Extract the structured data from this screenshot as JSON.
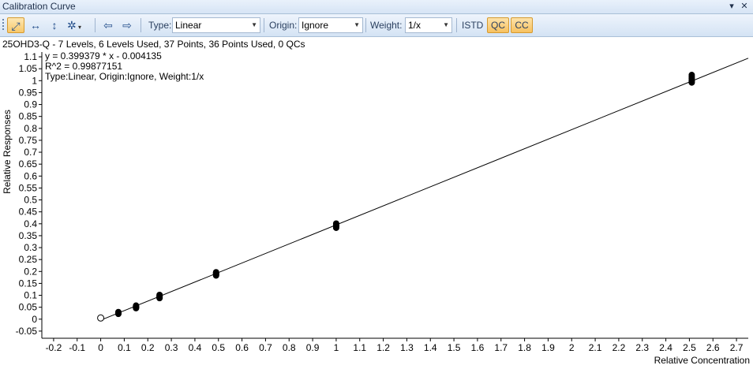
{
  "window": {
    "title": "Calibration Curve",
    "pin_icon": "pin-icon",
    "close_icon": "close-icon"
  },
  "toolbar": {
    "type_label": "Type:",
    "type_value": "Linear",
    "origin_label": "Origin:",
    "origin_value": "Ignore",
    "weight_label": "Weight:",
    "weight_value": "1/x",
    "istd_label": "ISTD",
    "qc_label": "QC",
    "cc_label": "CC",
    "icons": [
      "zoom-fit-icon",
      "stretch-horizontal-icon",
      "stretch-vertical-icon",
      "settings-icon",
      "previous-icon",
      "next-icon"
    ]
  },
  "header": {
    "summary": "25OHD3-Q - 7 Levels, 6 Levels Used, 37 Points, 36 Points Used, 0 QCs",
    "equation": "y = 0.399379 * x - 0.004135",
    "r2": "R^2 = 0.99877151",
    "settings": "Type:Linear, Origin:Ignore, Weight:1/x"
  },
  "chart_data": {
    "type": "scatter",
    "xlabel": "Relative Concentration",
    "ylabel": "Relative Responses",
    "xlim": [
      -0.25,
      2.75
    ],
    "ylim": [
      -0.08,
      1.12
    ],
    "xticks": [
      "-0.2",
      "-0.1",
      "0",
      "0.1",
      "0.2",
      "0.3",
      "0.4",
      "0.5",
      "0.6",
      "0.7",
      "0.8",
      "0.9",
      "1",
      "1.1",
      "1.2",
      "1.3",
      "1.4",
      "1.5",
      "1.6",
      "1.7",
      "1.8",
      "1.9",
      "2",
      "2.1",
      "2.2",
      "2.3",
      "2.4",
      "2.5",
      "2.6",
      "2.7"
    ],
    "yticks": [
      "-0.05",
      "0",
      "0.05",
      "0.1",
      "0.15",
      "0.2",
      "0.25",
      "0.3",
      "0.35",
      "0.4",
      "0.45",
      "0.5",
      "0.55",
      "0.6",
      "0.65",
      "0.7",
      "0.75",
      "0.8",
      "0.85",
      "0.9",
      "0.95",
      "1",
      "1.05",
      "1.1"
    ],
    "fit_line": {
      "slope": 0.399379,
      "intercept": -0.004135,
      "x_range": [
        0.0,
        2.75
      ]
    },
    "excluded_points": [
      {
        "x": 0.0,
        "y": 0.005
      }
    ],
    "points": [
      {
        "x": 0.075,
        "y": 0.022
      },
      {
        "x": 0.075,
        "y": 0.026
      },
      {
        "x": 0.075,
        "y": 0.03
      },
      {
        "x": 0.075,
        "y": 0.025
      },
      {
        "x": 0.075,
        "y": 0.028
      },
      {
        "x": 0.075,
        "y": 0.024
      },
      {
        "x": 0.15,
        "y": 0.046
      },
      {
        "x": 0.15,
        "y": 0.05
      },
      {
        "x": 0.15,
        "y": 0.054
      },
      {
        "x": 0.15,
        "y": 0.057
      },
      {
        "x": 0.15,
        "y": 0.048
      },
      {
        "x": 0.15,
        "y": 0.052
      },
      {
        "x": 0.25,
        "y": 0.088
      },
      {
        "x": 0.25,
        "y": 0.093
      },
      {
        "x": 0.25,
        "y": 0.098
      },
      {
        "x": 0.25,
        "y": 0.102
      },
      {
        "x": 0.25,
        "y": 0.09
      },
      {
        "x": 0.25,
        "y": 0.096
      },
      {
        "x": 0.49,
        "y": 0.183
      },
      {
        "x": 0.49,
        "y": 0.188
      },
      {
        "x": 0.49,
        "y": 0.192
      },
      {
        "x": 0.49,
        "y": 0.197
      },
      {
        "x": 0.49,
        "y": 0.186
      },
      {
        "x": 0.49,
        "y": 0.194
      },
      {
        "x": 1.0,
        "y": 0.383
      },
      {
        "x": 1.0,
        "y": 0.389
      },
      {
        "x": 1.0,
        "y": 0.395
      },
      {
        "x": 1.0,
        "y": 0.401
      },
      {
        "x": 1.0,
        "y": 0.392
      },
      {
        "x": 1.0,
        "y": 0.398
      },
      {
        "x": 2.51,
        "y": 0.992
      },
      {
        "x": 2.51,
        "y": 1.0
      },
      {
        "x": 2.51,
        "y": 1.008
      },
      {
        "x": 2.51,
        "y": 1.016
      },
      {
        "x": 2.51,
        "y": 1.024
      },
      {
        "x": 2.51,
        "y": 0.996
      }
    ]
  }
}
